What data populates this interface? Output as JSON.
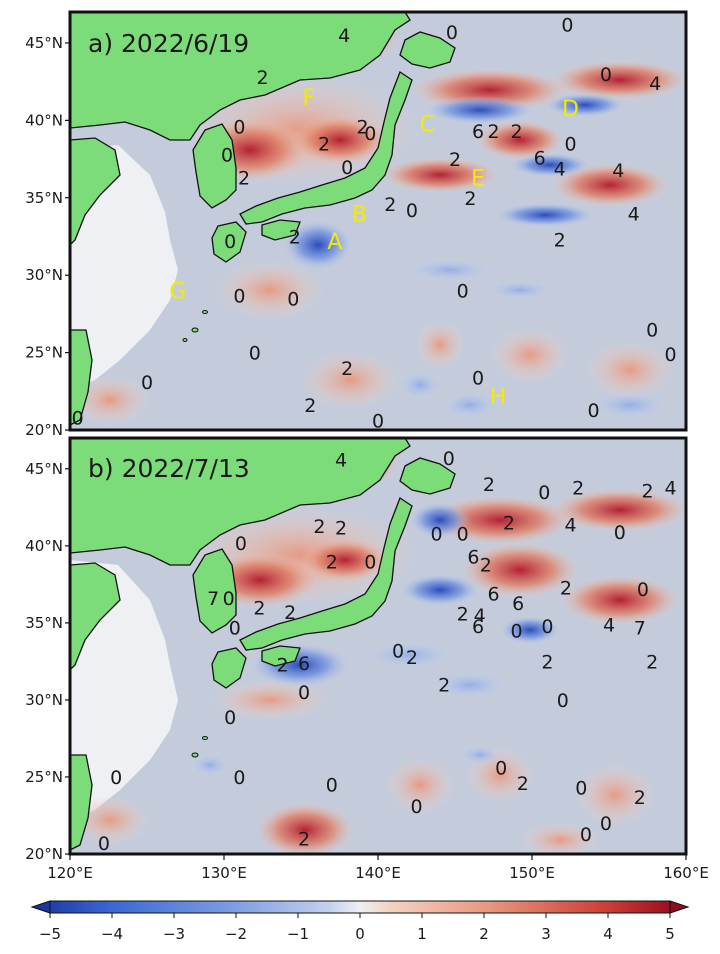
{
  "panels": [
    {
      "title": "a) 2022/6/19",
      "letters": [
        {
          "text": "F",
          "lon": 135.5,
          "lat": 41.5
        },
        {
          "text": "C",
          "lon": 143.2,
          "lat": 39.8
        },
        {
          "text": "D",
          "lon": 152.5,
          "lat": 40.8
        },
        {
          "text": "E",
          "lon": 146.5,
          "lat": 36.3
        },
        {
          "text": "B",
          "lon": 138.8,
          "lat": 34.0
        },
        {
          "text": "A",
          "lon": 137.2,
          "lat": 32.2
        },
        {
          "text": "G",
          "lon": 127.0,
          "lat": 29.0
        },
        {
          "text": "H",
          "lon": 147.8,
          "lat": 22.2
        }
      ],
      "contour_labels": [
        {
          "text": "4",
          "lon": 137.8,
          "lat": 45.5
        },
        {
          "text": "0",
          "lon": 144.8,
          "lat": 45.7
        },
        {
          "text": "0",
          "lon": 152.3,
          "lat": 46.2
        },
        {
          "text": "0",
          "lon": 154.8,
          "lat": 43.0
        },
        {
          "text": "4",
          "lon": 158.0,
          "lat": 42.4
        },
        {
          "text": "2",
          "lon": 132.5,
          "lat": 42.8
        },
        {
          "text": "0",
          "lon": 131.0,
          "lat": 39.6
        },
        {
          "text": "0",
          "lon": 139.5,
          "lat": 39.2
        },
        {
          "text": "2",
          "lon": 139.0,
          "lat": 39.6
        },
        {
          "text": "2",
          "lon": 149.0,
          "lat": 39.3
        },
        {
          "text": "0",
          "lon": 152.5,
          "lat": 38.5
        },
        {
          "text": "6",
          "lon": 146.5,
          "lat": 39.3
        },
        {
          "text": "2",
          "lon": 147.5,
          "lat": 39.3
        },
        {
          "text": "2",
          "lon": 136.5,
          "lat": 38.5
        },
        {
          "text": "0",
          "lon": 138.0,
          "lat": 37.0
        },
        {
          "text": "0",
          "lon": 130.2,
          "lat": 37.8
        },
        {
          "text": "2",
          "lon": 131.3,
          "lat": 36.3
        },
        {
          "text": "2",
          "lon": 145.0,
          "lat": 37.5
        },
        {
          "text": "6",
          "lon": 150.5,
          "lat": 37.6
        },
        {
          "text": "4",
          "lon": 151.8,
          "lat": 36.9
        },
        {
          "text": "4",
          "lon": 155.6,
          "lat": 36.8
        },
        {
          "text": "4",
          "lon": 156.6,
          "lat": 34.0
        },
        {
          "text": "2",
          "lon": 140.8,
          "lat": 34.6
        },
        {
          "text": "0",
          "lon": 142.2,
          "lat": 34.2
        },
        {
          "text": "2",
          "lon": 134.6,
          "lat": 32.5
        },
        {
          "text": "2",
          "lon": 146.0,
          "lat": 35.0
        },
        {
          "text": "2",
          "lon": 151.8,
          "lat": 32.3
        },
        {
          "text": "0",
          "lon": 130.4,
          "lat": 32.2
        },
        {
          "text": "0",
          "lon": 145.5,
          "lat": 29.0
        },
        {
          "text": "0",
          "lon": 131.0,
          "lat": 28.7
        },
        {
          "text": "0",
          "lon": 134.5,
          "lat": 28.5
        },
        {
          "text": "0",
          "lon": 157.8,
          "lat": 26.5
        },
        {
          "text": "0",
          "lon": 159.0,
          "lat": 24.9
        },
        {
          "text": "0",
          "lon": 132.0,
          "lat": 25.0
        },
        {
          "text": "2",
          "lon": 138.0,
          "lat": 24.0
        },
        {
          "text": "0",
          "lon": 125.0,
          "lat": 23.1
        },
        {
          "text": "0",
          "lon": 146.5,
          "lat": 23.4
        },
        {
          "text": "2",
          "lon": 135.6,
          "lat": 21.6
        },
        {
          "text": "0",
          "lon": 154.0,
          "lat": 21.3
        },
        {
          "text": "0",
          "lon": 140.0,
          "lat": 20.6
        },
        {
          "text": "0",
          "lon": 120.5,
          "lat": 20.8
        }
      ]
    },
    {
      "title": "b) 2022/7/13",
      "letters": [],
      "contour_labels": [
        {
          "text": "4",
          "lon": 137.6,
          "lat": 45.6
        },
        {
          "text": "0",
          "lon": 144.6,
          "lat": 45.7
        },
        {
          "text": "2",
          "lon": 147.2,
          "lat": 44.0
        },
        {
          "text": "0",
          "lon": 150.8,
          "lat": 43.5
        },
        {
          "text": "2",
          "lon": 153.0,
          "lat": 43.8
        },
        {
          "text": "4",
          "lon": 159.0,
          "lat": 43.8
        },
        {
          "text": "2",
          "lon": 157.5,
          "lat": 43.6
        },
        {
          "text": "2",
          "lon": 136.2,
          "lat": 41.3
        },
        {
          "text": "2",
          "lon": 137.6,
          "lat": 41.2
        },
        {
          "text": "0",
          "lon": 143.8,
          "lat": 40.8
        },
        {
          "text": "0",
          "lon": 145.5,
          "lat": 40.8
        },
        {
          "text": "2",
          "lon": 148.5,
          "lat": 41.5
        },
        {
          "text": "4",
          "lon": 152.5,
          "lat": 41.4
        },
        {
          "text": "0",
          "lon": 155.7,
          "lat": 40.9
        },
        {
          "text": "0",
          "lon": 131.1,
          "lat": 40.2
        },
        {
          "text": "0",
          "lon": 139.5,
          "lat": 39.0
        },
        {
          "text": "2",
          "lon": 137.0,
          "lat": 39.0
        },
        {
          "text": "6",
          "lon": 146.2,
          "lat": 39.3
        },
        {
          "text": "2",
          "lon": 147.0,
          "lat": 38.8
        },
        {
          "text": "2",
          "lon": 152.2,
          "lat": 37.3
        },
        {
          "text": "6",
          "lon": 149.1,
          "lat": 36.3
        },
        {
          "text": "6",
          "lon": 147.5,
          "lat": 36.9
        },
        {
          "text": "0",
          "lon": 157.2,
          "lat": 37.2
        },
        {
          "text": "7",
          "lon": 129.3,
          "lat": 36.6
        },
        {
          "text": "0",
          "lon": 130.3,
          "lat": 36.6
        },
        {
          "text": "2",
          "lon": 132.3,
          "lat": 36.0
        },
        {
          "text": "2",
          "lon": 134.3,
          "lat": 35.7
        },
        {
          "text": "0",
          "lon": 130.7,
          "lat": 34.7
        },
        {
          "text": "2",
          "lon": 145.5,
          "lat": 35.6
        },
        {
          "text": "4",
          "lon": 146.6,
          "lat": 35.5
        },
        {
          "text": "6",
          "lon": 146.5,
          "lat": 34.8
        },
        {
          "text": "0",
          "lon": 149.0,
          "lat": 34.5
        },
        {
          "text": "0",
          "lon": 151.0,
          "lat": 34.8
        },
        {
          "text": "4",
          "lon": 155.0,
          "lat": 34.9
        },
        {
          "text": "7",
          "lon": 157.0,
          "lat": 34.7
        },
        {
          "text": "0",
          "lon": 141.3,
          "lat": 33.2
        },
        {
          "text": "2",
          "lon": 142.2,
          "lat": 32.8
        },
        {
          "text": "2",
          "lon": 151.0,
          "lat": 32.5
        },
        {
          "text": "2",
          "lon": 157.8,
          "lat": 32.5
        },
        {
          "text": "6",
          "lon": 135.2,
          "lat": 32.4
        },
        {
          "text": "2",
          "lon": 133.8,
          "lat": 32.3
        },
        {
          "text": "2",
          "lon": 144.3,
          "lat": 31.0
        },
        {
          "text": "0",
          "lon": 135.2,
          "lat": 30.5
        },
        {
          "text": "0",
          "lon": 152.0,
          "lat": 30.0
        },
        {
          "text": "0",
          "lon": 130.4,
          "lat": 28.9
        },
        {
          "text": "0",
          "lon": 148.0,
          "lat": 25.6
        },
        {
          "text": "0",
          "lon": 123.0,
          "lat": 25.0
        },
        {
          "text": "0",
          "lon": 131.0,
          "lat": 25.0
        },
        {
          "text": "0",
          "lon": 137.0,
          "lat": 24.5
        },
        {
          "text": "2",
          "lon": 149.4,
          "lat": 24.6
        },
        {
          "text": "0",
          "lon": 153.2,
          "lat": 24.3
        },
        {
          "text": "2",
          "lon": 157.0,
          "lat": 23.7
        },
        {
          "text": "0",
          "lon": 142.5,
          "lat": 23.1
        },
        {
          "text": "0",
          "lon": 154.8,
          "lat": 22.0
        },
        {
          "text": "0",
          "lon": 153.5,
          "lat": 21.3
        },
        {
          "text": "2",
          "lon": 135.2,
          "lat": 21.0
        },
        {
          "text": "0",
          "lon": 122.2,
          "lat": 20.7
        }
      ]
    }
  ],
  "axes": {
    "lon_ticks": [
      "120°E",
      "130°E",
      "140°E",
      "150°E",
      "160°E"
    ],
    "lat_ticks": [
      "20°N",
      "25°N",
      "30°N",
      "35°N",
      "40°N",
      "45°N"
    ]
  },
  "colorbar": {
    "ticks": [
      "−5",
      "−4",
      "−3",
      "−2",
      "−1",
      "0",
      "1",
      "2",
      "3",
      "4",
      "5"
    ]
  },
  "colors": {
    "land": "#7ddc7a",
    "ocean": "#c4ccdc",
    "no_data": "#eef0f3",
    "positive": "#b2182b",
    "negative": "#2d5ecc",
    "label_letters": "#f5ea00"
  }
}
